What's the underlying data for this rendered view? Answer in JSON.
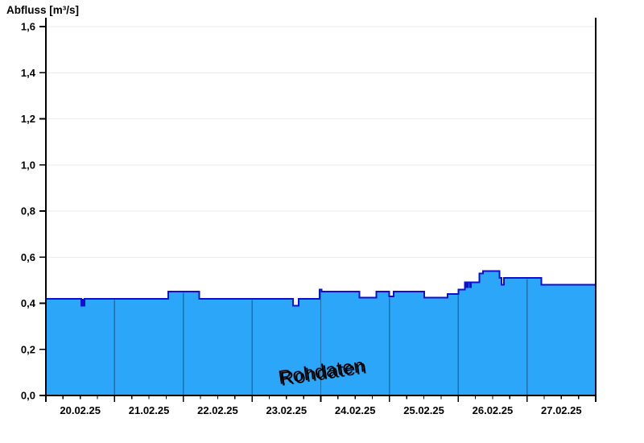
{
  "header": {
    "title": "Abfluss [m³/s]"
  },
  "chart_data": {
    "type": "area",
    "title": "Abfluss [m³/s]",
    "ylabel": "Abfluss [m³/s]",
    "watermark": "Rohdaten",
    "ylim": [
      0,
      1.6
    ],
    "y_tick_step": 0.2,
    "y_tick_labels": [
      "0,0",
      "0,2",
      "0,4",
      "0,6",
      "0,8",
      "1,0",
      "1,2",
      "1,4",
      "1,6"
    ],
    "x_categories": [
      "20.02.25",
      "21.02.25",
      "22.02.25",
      "23.02.25",
      "24.02.25",
      "25.02.25",
      "26.02.25",
      "27.02.25"
    ],
    "x_range_days": [
      0,
      8
    ],
    "x_minor_ticks_per_day": 4,
    "grid": "horizontal-only",
    "legend": "none",
    "series": [
      {
        "name": "Abfluss Rohdaten",
        "step": "after",
        "unit": "m³/s",
        "points": [
          [
            0.0,
            0.42
          ],
          [
            0.515,
            0.39
          ],
          [
            0.53,
            0.415
          ],
          [
            0.54,
            0.39
          ],
          [
            0.565,
            0.42
          ],
          [
            1.78,
            0.45
          ],
          [
            2.23,
            0.42
          ],
          [
            3.595,
            0.39
          ],
          [
            3.675,
            0.42
          ],
          [
            3.985,
            0.46
          ],
          [
            4.01,
            0.45
          ],
          [
            4.565,
            0.425
          ],
          [
            4.81,
            0.45
          ],
          [
            4.995,
            0.43
          ],
          [
            5.06,
            0.45
          ],
          [
            5.505,
            0.425
          ],
          [
            5.845,
            0.44
          ],
          [
            6.0,
            0.46
          ],
          [
            6.095,
            0.49
          ],
          [
            6.115,
            0.47
          ],
          [
            6.135,
            0.49
          ],
          [
            6.165,
            0.47
          ],
          [
            6.185,
            0.49
          ],
          [
            6.31,
            0.53
          ],
          [
            6.36,
            0.54
          ],
          [
            6.6,
            0.51
          ],
          [
            6.63,
            0.48
          ],
          [
            6.665,
            0.51
          ],
          [
            7.21,
            0.48
          ],
          [
            8.0,
            0.48
          ]
        ]
      }
    ],
    "colors": {
      "fill": "#2ba6f9",
      "line": "#0f0fd2",
      "day_separator": "#1e6fb0",
      "grid": "#ebebeb",
      "axis": "#000000",
      "watermark_light": "#e2e2e2",
      "watermark_shadow": "#868686"
    }
  }
}
